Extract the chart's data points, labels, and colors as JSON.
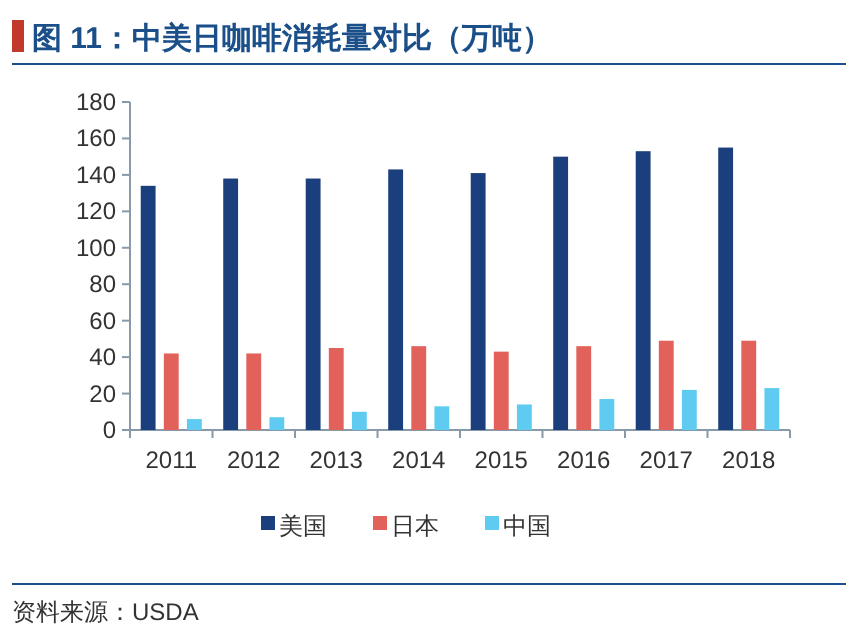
{
  "chart_data": {
    "type": "bar",
    "title": "图 11：中美日咖啡消耗量对比（万吨）",
    "categories": [
      "2011",
      "2012",
      "2013",
      "2014",
      "2015",
      "2016",
      "2017",
      "2018"
    ],
    "series": [
      {
        "name": "美国",
        "color": "#1b3f7c",
        "values": [
          134,
          138,
          138,
          143,
          141,
          150,
          153,
          155
        ]
      },
      {
        "name": "日本",
        "color": "#e2615a",
        "values": [
          42,
          42,
          45,
          46,
          43,
          46,
          49,
          49
        ]
      },
      {
        "name": "中国",
        "color": "#5fcbf0",
        "values": [
          6,
          7,
          10,
          13,
          14,
          17,
          22,
          23
        ]
      }
    ],
    "ylim": [
      0,
      180
    ],
    "yticks": [
      0,
      20,
      40,
      60,
      80,
      100,
      120,
      140,
      160,
      180
    ],
    "grid": false,
    "legend": "bottom",
    "annotations": [
      "资料来源：USDA"
    ]
  }
}
